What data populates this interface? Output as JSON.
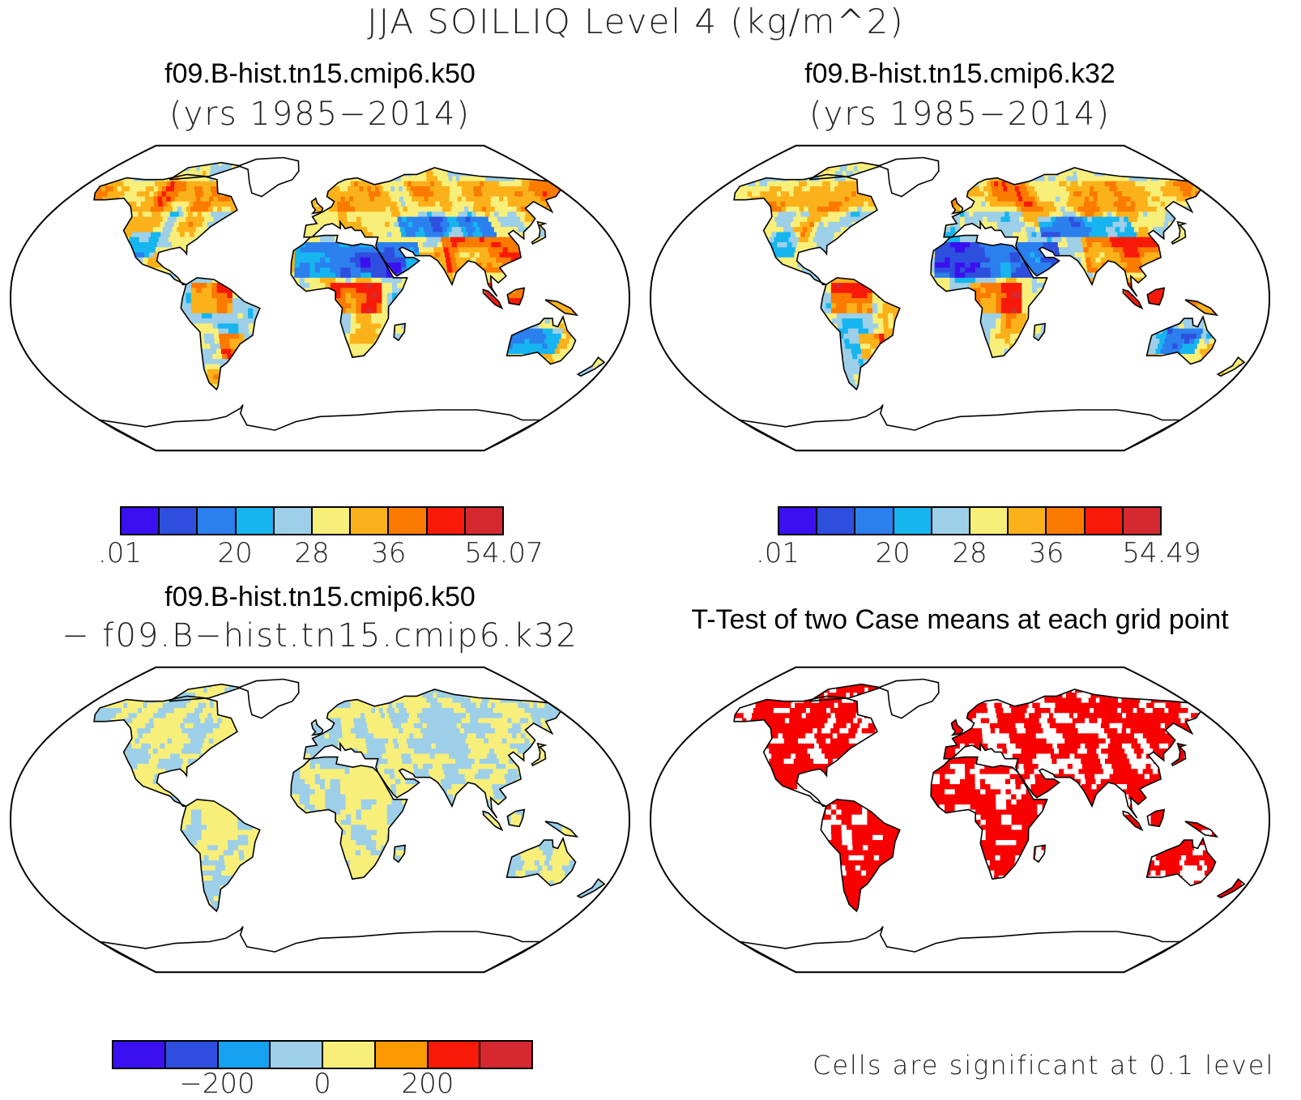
{
  "main_title": "JJA SOILLIQ Level 4 (kg/m^2)",
  "panels": [
    {
      "id": "k50",
      "title": "f09.B-hist.tn15.cmip6.k50",
      "subtitle": "(yrs 1985−2014)",
      "fill": "mean",
      "colorbar": {
        "colors": [
          "#3b10f0",
          "#2e4fde",
          "#2b80ee",
          "#16b5f0",
          "#9dcfe8",
          "#f8ef7a",
          "#fbb11a",
          "#fb7a00",
          "#f81a08",
          "#d5292f"
        ],
        "ticks": [
          ".01",
          "20",
          "28",
          "36",
          "54.07"
        ],
        "tick_boundaries": [
          0,
          3,
          5,
          7,
          10
        ]
      }
    },
    {
      "id": "k32",
      "title": "f09.B-hist.tn15.cmip6.k32",
      "subtitle": "(yrs 1985−2014)",
      "fill": "mean",
      "colorbar": {
        "colors": [
          "#3b10f0",
          "#2e4fde",
          "#2b80ee",
          "#16b5f0",
          "#9dcfe8",
          "#f8ef7a",
          "#fbb11a",
          "#fb7a00",
          "#f81a08",
          "#d5292f"
        ],
        "ticks": [
          ".01",
          "20",
          "28",
          "36",
          "54.49"
        ],
        "tick_boundaries": [
          0,
          3,
          5,
          7,
          10
        ]
      }
    },
    {
      "id": "diff",
      "title": "f09.B-hist.tn15.cmip6.k50",
      "subtitle": "− f09.B−hist.tn15.cmip6.k32",
      "fill": "diff",
      "colorbar": {
        "colors": [
          "#3b10f0",
          "#2e4fde",
          "#16a2f0",
          "#9dcfe8",
          "#f8ef7a",
          "#fb9a00",
          "#f81a08",
          "#d5292f"
        ],
        "ticks": [
          "−200",
          "0",
          "200"
        ],
        "tick_boundaries": [
          2,
          4,
          6
        ]
      }
    },
    {
      "id": "ttest",
      "title": "T-Test of two Case means at each grid point",
      "subtitle": "",
      "fill": "ttest",
      "footnote": "Cells are significant at 0.1 level"
    }
  ],
  "colors": {
    "ocean": "#ffffff",
    "outline": "#000000",
    "significant": "#f80000"
  }
}
